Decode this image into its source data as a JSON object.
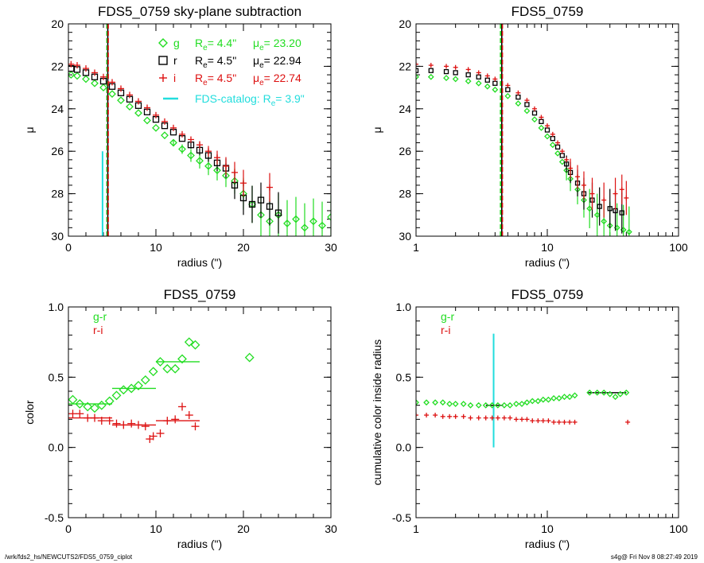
{
  "footer": {
    "path": "/wrk/fds2_hs/NEWCUTS2/FDS5_0759_ciplot",
    "stamp": "s4g@  Fri Nov  8 08:27:49 2019"
  },
  "colors": {
    "g": "#22dd22",
    "r": "#000000",
    "i": "#dd1111",
    "catalog": "#22dddd"
  },
  "chart_data": [
    {
      "id": "p1",
      "type": "scatter",
      "title": "FDS5_0759 sky-plane subtraction",
      "xlabel": "radius (\")",
      "ylabel": "μ",
      "xscale": "linear",
      "xlim": [
        0,
        30
      ],
      "ylim": [
        30,
        20
      ],
      "xticks": [
        0,
        10,
        20,
        30
      ],
      "yticks": [
        20,
        22,
        24,
        26,
        28,
        30
      ],
      "legend": [
        {
          "marker": "diamond",
          "color": "#22dd22",
          "band": "g",
          "re_label": "R",
          "re_sub": "e",
          "re_value": "=  4.4\"",
          "mu_label": "μ",
          "mu_sub": "e",
          "mu_value": "= 23.20"
        },
        {
          "marker": "square",
          "color": "#000000",
          "band": "r",
          "re_label": "R",
          "re_sub": "e",
          "re_value": "=  4.5\"",
          "mu_label": "μ",
          "mu_sub": "e",
          "mu_value": "= 22.94"
        },
        {
          "marker": "plus",
          "color": "#dd1111",
          "band": "i",
          "re_label": "R",
          "re_sub": "e",
          "re_value": "=  4.5\"",
          "mu_label": "μ",
          "mu_sub": "e",
          "mu_value": "= 22.74"
        }
      ],
      "catalog": {
        "label": "FDS-catalog: R",
        "sub": "e",
        "value": "=  3.9\"",
        "x": 3.9,
        "y_from": 26.0,
        "y_to": 30
      },
      "vlines": [
        {
          "x": 4.4,
          "color": "#22dd22"
        },
        {
          "x": 4.5,
          "color": "#000000"
        },
        {
          "x": 4.55,
          "color": "#dd1111"
        }
      ],
      "series": [
        {
          "name": "g",
          "marker": "diamond",
          "color": "#22dd22",
          "x": [
            0.3,
            1,
            2,
            3,
            4,
            5,
            6,
            7,
            8,
            9,
            10,
            11,
            12,
            13,
            14,
            15,
            16,
            17,
            18,
            19,
            20,
            21,
            22,
            23,
            24,
            25,
            26,
            27,
            28,
            29,
            30
          ],
          "y": [
            22.4,
            22.45,
            22.6,
            22.8,
            23.0,
            23.3,
            23.6,
            23.9,
            24.2,
            24.55,
            24.9,
            25.25,
            25.6,
            25.9,
            26.2,
            26.45,
            26.7,
            26.9,
            27.15,
            27.4,
            28.0,
            28.5,
            29.0,
            29.3,
            29.0,
            29.4,
            29.2,
            29.6,
            29.3,
            29.5,
            29.1
          ]
        },
        {
          "name": "r",
          "marker": "square",
          "color": "#000000",
          "x": [
            0.3,
            1,
            2,
            3,
            4,
            5,
            6,
            7,
            8,
            9,
            10,
            11,
            12,
            13,
            14,
            15,
            16,
            17,
            18,
            19,
            20,
            21,
            22,
            23,
            24
          ],
          "y": [
            22.1,
            22.15,
            22.3,
            22.5,
            22.7,
            22.95,
            23.25,
            23.55,
            23.85,
            24.15,
            24.5,
            24.8,
            25.1,
            25.4,
            25.7,
            25.95,
            26.2,
            26.55,
            26.8,
            27.6,
            28.2,
            28.5,
            28.3,
            28.6,
            28.9
          ]
        },
        {
          "name": "i",
          "marker": "plus",
          "color": "#dd1111",
          "x": [
            0.3,
            1,
            2,
            3,
            4,
            5,
            6,
            7,
            8,
            9,
            10,
            11,
            12,
            13,
            14,
            15,
            16,
            17,
            18,
            19,
            20,
            23
          ],
          "y": [
            21.9,
            21.95,
            22.1,
            22.3,
            22.5,
            22.75,
            23.05,
            23.35,
            23.65,
            23.95,
            24.3,
            24.6,
            24.9,
            25.2,
            25.45,
            25.7,
            26.0,
            26.3,
            26.7,
            27.0,
            27.5,
            27.7
          ]
        }
      ]
    },
    {
      "id": "p2",
      "type": "scatter",
      "title": "FDS5_0759",
      "xlabel": "radius (\")",
      "ylabel": "μ",
      "xscale": "log",
      "xlim": [
        1,
        100
      ],
      "ylim": [
        30,
        20
      ],
      "xticks": [
        1,
        10,
        100
      ],
      "yticks": [
        20,
        22,
        24,
        26,
        28,
        30
      ],
      "vlines": [
        {
          "x": 4.4,
          "color": "#22dd22"
        },
        {
          "x": 4.5,
          "color": "#000000"
        },
        {
          "x": 4.55,
          "color": "#dd1111"
        }
      ],
      "series": [
        {
          "name": "g",
          "marker": "diamond",
          "color": "#22dd22",
          "x": [
            1,
            1.3,
            1.7,
            2,
            2.5,
            3,
            3.5,
            4,
            5,
            6,
            7,
            8,
            9,
            10,
            11,
            12,
            13,
            14,
            15,
            17,
            19,
            21,
            24,
            27,
            30,
            34,
            38,
            42
          ],
          "y": [
            22.5,
            22.5,
            22.55,
            22.6,
            22.7,
            22.8,
            22.95,
            23.1,
            23.4,
            23.75,
            24.1,
            24.5,
            24.9,
            25.3,
            25.7,
            26.1,
            26.5,
            26.9,
            27.3,
            27.8,
            28.3,
            28.7,
            29.0,
            29.3,
            29.5,
            29.6,
            29.7,
            29.8
          ]
        },
        {
          "name": "r",
          "marker": "square",
          "color": "#000000",
          "x": [
            1,
            1.3,
            1.7,
            2,
            2.5,
            3,
            3.5,
            4,
            5,
            6,
            7,
            8,
            9,
            10,
            11,
            12,
            13,
            14,
            15,
            17,
            19,
            22,
            25,
            30,
            33,
            37
          ],
          "y": [
            22.2,
            22.2,
            22.25,
            22.3,
            22.4,
            22.5,
            22.65,
            22.8,
            23.1,
            23.45,
            23.8,
            24.2,
            24.6,
            25.0,
            25.4,
            25.8,
            26.2,
            26.6,
            27.0,
            27.5,
            28.0,
            28.3,
            28.6,
            28.7,
            28.8,
            28.9
          ]
        },
        {
          "name": "i",
          "marker": "plus",
          "color": "#dd1111",
          "x": [
            1,
            1.3,
            1.7,
            2,
            2.5,
            3,
            3.5,
            4,
            5,
            6,
            7,
            8,
            9,
            10,
            11,
            12,
            13,
            14,
            15,
            17,
            19,
            22,
            27,
            33,
            37,
            40
          ],
          "y": [
            21.9,
            21.95,
            22.0,
            22.05,
            22.15,
            22.3,
            22.45,
            22.6,
            22.9,
            23.25,
            23.6,
            24.0,
            24.4,
            24.8,
            25.2,
            25.6,
            26.0,
            26.4,
            26.8,
            27.2,
            27.6,
            28.0,
            28.3,
            28.0,
            27.8,
            28.2
          ]
        }
      ]
    },
    {
      "id": "p3",
      "type": "scatter",
      "title": "FDS5_0759",
      "xlabel": "radius (\")",
      "ylabel": "color",
      "xscale": "linear",
      "xlim": [
        0,
        30
      ],
      "ylim": [
        -0.5,
        1.0
      ],
      "xticks": [
        0,
        10,
        20,
        30
      ],
      "yticks": [
        -0.5,
        0.0,
        0.5,
        1.0
      ],
      "legend": [
        {
          "label": "g-r",
          "color": "#22dd22"
        },
        {
          "label": "r-i",
          "color": "#dd1111"
        }
      ],
      "series": [
        {
          "name": "g-r",
          "marker": "diamond",
          "color": "#22dd22",
          "x": [
            0.5,
            1.3,
            2.2,
            3.0,
            3.8,
            4.7,
            5.5,
            6.3,
            7.2,
            8.0,
            8.8,
            9.7,
            10.5,
            11.3,
            12.2,
            13.0,
            13.8,
            14.5,
            20.7
          ],
          "y": [
            0.34,
            0.31,
            0.29,
            0.28,
            0.3,
            0.33,
            0.37,
            0.41,
            0.42,
            0.44,
            0.48,
            0.54,
            0.61,
            0.56,
            0.56,
            0.63,
            0.75,
            0.73,
            0.64
          ]
        },
        {
          "name": "r-i",
          "marker": "plus",
          "color": "#dd1111",
          "x": [
            0.5,
            1.3,
            2.2,
            3.0,
            3.8,
            4.7,
            5.5,
            6.3,
            7.2,
            8.0,
            8.8,
            9.3,
            9.7,
            10.5,
            11.3,
            12.2,
            13.0,
            13.8,
            14.5
          ],
          "y": [
            0.24,
            0.24,
            0.21,
            0.21,
            0.19,
            0.19,
            0.17,
            0.16,
            0.17,
            0.16,
            0.15,
            0.06,
            0.08,
            0.1,
            0.19,
            0.2,
            0.29,
            0.23,
            0.15
          ]
        }
      ],
      "segments": [
        {
          "color": "#22dd22",
          "x1": 0,
          "x2": 5.0,
          "y": 0.31
        },
        {
          "color": "#22dd22",
          "x1": 5.0,
          "x2": 10.0,
          "y": 0.42
        },
        {
          "color": "#22dd22",
          "x1": 10.0,
          "x2": 15.0,
          "y": 0.61
        },
        {
          "color": "#dd1111",
          "x1": 0,
          "x2": 5.0,
          "y": 0.21
        },
        {
          "color": "#dd1111",
          "x1": 5.0,
          "x2": 10.0,
          "y": 0.16
        },
        {
          "color": "#dd1111",
          "x1": 10.0,
          "x2": 15.0,
          "y": 0.19
        }
      ]
    },
    {
      "id": "p4",
      "type": "scatter",
      "title": "FDS5_0759",
      "xlabel": "radius (\")",
      "ylabel": "cumulative color inside radius",
      "xscale": "log",
      "xlim": [
        1,
        100
      ],
      "ylim": [
        -0.5,
        1.0
      ],
      "xticks": [
        1,
        10,
        100
      ],
      "yticks": [
        -0.5,
        0.0,
        0.5,
        1.0
      ],
      "legend": [
        {
          "label": "g-r",
          "color": "#22dd22"
        },
        {
          "label": "r-i",
          "color": "#dd1111"
        }
      ],
      "catalog": {
        "x": 3.9,
        "y_from": 0.0,
        "y_to": 0.81
      },
      "series": [
        {
          "name": "g-r",
          "marker": "diamond",
          "color": "#22dd22",
          "x": [
            1.0,
            1.2,
            1.4,
            1.6,
            1.8,
            2.0,
            2.3,
            2.6,
            3.0,
            3.4,
            3.8,
            4.2,
            4.7,
            5.2,
            5.8,
            6.4,
            7.0,
            7.7,
            8.5,
            9.3,
            10.2,
            11.2,
            12.3,
            13.5,
            14.8,
            16.2,
            21,
            24,
            27,
            30,
            33,
            36,
            40
          ],
          "y": [
            0.32,
            0.32,
            0.32,
            0.32,
            0.31,
            0.31,
            0.31,
            0.3,
            0.3,
            0.3,
            0.3,
            0.3,
            0.3,
            0.3,
            0.31,
            0.31,
            0.32,
            0.33,
            0.33,
            0.34,
            0.34,
            0.35,
            0.35,
            0.36,
            0.36,
            0.37,
            0.39,
            0.39,
            0.39,
            0.38,
            0.36,
            0.38,
            0.39
          ]
        },
        {
          "name": "r-i",
          "marker": "plus",
          "color": "#dd1111",
          "x": [
            1.0,
            1.2,
            1.4,
            1.6,
            1.8,
            2.0,
            2.3,
            2.6,
            3.0,
            3.4,
            3.8,
            4.2,
            4.7,
            5.2,
            5.8,
            6.4,
            7.0,
            7.7,
            8.5,
            9.3,
            10.2,
            11.2,
            12.3,
            13.5,
            14.8,
            16.2,
            41
          ],
          "y": [
            0.23,
            0.23,
            0.23,
            0.22,
            0.22,
            0.22,
            0.22,
            0.21,
            0.21,
            0.21,
            0.21,
            0.21,
            0.21,
            0.21,
            0.2,
            0.2,
            0.2,
            0.19,
            0.19,
            0.19,
            0.19,
            0.18,
            0.18,
            0.18,
            0.18,
            0.18,
            0.18
          ]
        }
      ],
      "segments": [
        {
          "color": "#000000",
          "x1": 3.4,
          "x2": 4.6,
          "y": 0.3
        },
        {
          "color": "#000000",
          "x1": 20.5,
          "x2": 40,
          "y": 0.39
        }
      ]
    }
  ]
}
